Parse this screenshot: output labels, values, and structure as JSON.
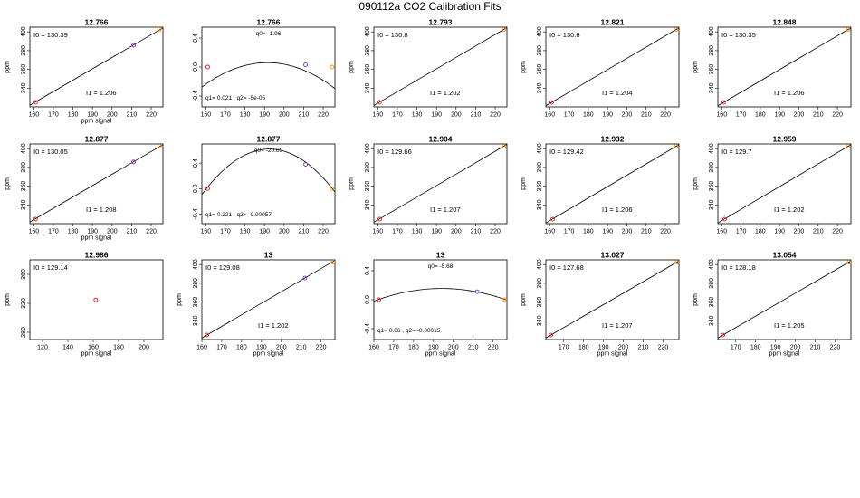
{
  "page": {
    "title": "090112a   CO2 Calibration Fits"
  },
  "chart_data": [
    {
      "type": "line",
      "kind": "linear",
      "title": "12.766",
      "xlabel": "ppm signal",
      "ylabel": "ppm",
      "xlim": [
        158,
        226
      ],
      "ylim": [
        320,
        405
      ],
      "xticks": [
        160,
        170,
        180,
        190,
        200,
        210,
        220
      ],
      "yticks": [
        340,
        360,
        380,
        400
      ],
      "points": [
        {
          "x": 160.9,
          "y": 324.9,
          "color": "#e41a1c"
        },
        {
          "x": 211,
          "y": 385.8,
          "color": "#7b2fbe"
        },
        {
          "x": 224.2,
          "y": 402.7,
          "color": "#ff8c00"
        }
      ],
      "line": [
        [
          158,
          321.8
        ],
        [
          226,
          404.2
        ]
      ],
      "annotations": {
        "top": "I0 =  130.39",
        "bottom": "I1 =  1.206"
      }
    },
    {
      "type": "line",
      "kind": "residual",
      "title": "12.766",
      "xlabel": "",
      "ylabel": "",
      "xlim": [
        158,
        226
      ],
      "ylim": [
        -0.55,
        0.55
      ],
      "xticks": [
        160,
        170,
        180,
        190,
        200,
        210,
        220
      ],
      "yticks": [
        -0.4,
        0.0,
        0.4
      ],
      "points": [
        {
          "x": 161,
          "y": 0.0,
          "color": "#e41a1c"
        },
        {
          "x": 211,
          "y": 0.03,
          "color": "#7b2fbe"
        },
        {
          "x": 224.5,
          "y": 0.0,
          "color": "#ff8c00"
        }
      ],
      "curve": {
        "a": -0.0003,
        "c": 191.5,
        "k": 0.06
      },
      "annotations": {
        "top": "q0= -1.96",
        "bottom": "q1= 0.021  , q2= -5e-05"
      }
    },
    {
      "type": "line",
      "kind": "linear",
      "title": "12.793",
      "xlabel": "",
      "ylabel": "ppm",
      "xlim": [
        158,
        226
      ],
      "ylim": [
        320,
        405
      ],
      "xticks": [
        160,
        170,
        180,
        190,
        200,
        210,
        220
      ],
      "yticks": [
        340,
        360,
        380,
        400
      ],
      "points": [
        {
          "x": 160.9,
          "y": 324.9,
          "color": "#e41a1c"
        },
        {
          "x": 224.5,
          "y": 402.5,
          "color": "#ff8c00"
        }
      ],
      "line": [
        [
          158,
          321.5
        ],
        [
          226,
          404.5
        ]
      ],
      "annotations": {
        "top": "I0 =  130.8",
        "bottom": "I1 =  1.202"
      }
    },
    {
      "type": "line",
      "kind": "linear",
      "title": "12.821",
      "xlabel": "",
      "ylabel": "ppm",
      "xlim": [
        158,
        227
      ],
      "ylim": [
        320,
        405
      ],
      "xticks": [
        160,
        170,
        180,
        190,
        200,
        210,
        220
      ],
      "yticks": [
        340,
        360,
        380,
        400
      ],
      "points": [
        {
          "x": 161,
          "y": 324.8,
          "color": "#e41a1c"
        },
        {
          "x": 225.5,
          "y": 402.5,
          "color": "#ff8c00"
        }
      ],
      "line": [
        [
          158,
          321.2
        ],
        [
          227,
          404.3
        ]
      ],
      "annotations": {
        "top": "I0 =  130.6",
        "bottom": "I1 =  1.204"
      }
    },
    {
      "type": "line",
      "kind": "linear",
      "title": "12.848",
      "xlabel": "",
      "ylabel": "ppm",
      "xlim": [
        158,
        227
      ],
      "ylim": [
        320,
        405
      ],
      "xticks": [
        160,
        170,
        180,
        190,
        200,
        210,
        220
      ],
      "yticks": [
        340,
        360,
        380,
        400
      ],
      "points": [
        {
          "x": 161,
          "y": 324.8,
          "color": "#e41a1c"
        },
        {
          "x": 225.5,
          "y": 402.5,
          "color": "#ff8c00"
        }
      ],
      "line": [
        [
          158,
          321.2
        ],
        [
          227,
          404.3
        ]
      ],
      "annotations": {
        "top": "I0 =  130.35",
        "bottom": "I1 =  1.206"
      }
    },
    {
      "type": "line",
      "kind": "linear",
      "title": "12.877",
      "xlabel": "ppm signal",
      "ylabel": "ppm",
      "xlim": [
        158,
        226
      ],
      "ylim": [
        320,
        405
      ],
      "xticks": [
        160,
        170,
        180,
        190,
        200,
        210,
        220
      ],
      "yticks": [
        340,
        360,
        380,
        400
      ],
      "points": [
        {
          "x": 160.9,
          "y": 324.9,
          "color": "#e41a1c"
        },
        {
          "x": 211,
          "y": 385.8,
          "color": "#7b2fbe"
        },
        {
          "x": 224.3,
          "y": 402.6,
          "color": "#ff8c00"
        }
      ],
      "line": [
        [
          158,
          321.8
        ],
        [
          226,
          404.2
        ]
      ],
      "annotations": {
        "top": "I0 =  130.05",
        "bottom": "I1 =  1.208"
      }
    },
    {
      "type": "line",
      "kind": "residual",
      "title": "12.877",
      "xlabel": "",
      "ylabel": "",
      "xlim": [
        158,
        226
      ],
      "ylim": [
        -0.55,
        0.7
      ],
      "xticks": [
        160,
        170,
        180,
        190,
        200,
        210,
        220
      ],
      "yticks": [
        -0.4,
        0.0,
        0.4
      ],
      "points": [
        {
          "x": 161,
          "y": 0.0,
          "color": "#e41a1c"
        },
        {
          "x": 211,
          "y": 0.38,
          "color": "#7b2fbe"
        },
        {
          "x": 224.5,
          "y": 0.0,
          "color": "#ff8c00"
        }
      ],
      "curve": {
        "a": -0.0006,
        "c": 192.5,
        "k": 0.62
      },
      "annotations": {
        "top": "q0= -20.69",
        "bottom": "q1= 0.221  , q2= -0.00057"
      }
    },
    {
      "type": "line",
      "kind": "linear",
      "title": "12.904",
      "xlabel": "",
      "ylabel": "ppm",
      "xlim": [
        158,
        226
      ],
      "ylim": [
        320,
        405
      ],
      "xticks": [
        160,
        170,
        180,
        190,
        200,
        210,
        220
      ],
      "yticks": [
        340,
        360,
        380,
        400
      ],
      "points": [
        {
          "x": 161,
          "y": 324.9,
          "color": "#e41a1c"
        },
        {
          "x": 224.5,
          "y": 402.5,
          "color": "#ff8c00"
        }
      ],
      "line": [
        [
          158,
          321.5
        ],
        [
          226,
          404.5
        ]
      ],
      "annotations": {
        "top": "I0 =  129.66",
        "bottom": "I1 =  1.207"
      }
    },
    {
      "type": "line",
      "kind": "linear",
      "title": "12.932",
      "xlabel": "",
      "ylabel": "ppm",
      "xlim": [
        158,
        227
      ],
      "ylim": [
        320,
        405
      ],
      "xticks": [
        160,
        170,
        180,
        190,
        200,
        210,
        220
      ],
      "yticks": [
        340,
        360,
        380,
        400
      ],
      "points": [
        {
          "x": 161.5,
          "y": 324.8,
          "color": "#e41a1c"
        },
        {
          "x": 225.5,
          "y": 402.5,
          "color": "#ff8c00"
        }
      ],
      "line": [
        [
          158,
          320.8
        ],
        [
          227,
          404.3
        ]
      ],
      "annotations": {
        "top": "I0 =  129.42",
        "bottom": "I1 =  1.206"
      }
    },
    {
      "type": "line",
      "kind": "linear",
      "title": "12.959",
      "xlabel": "",
      "ylabel": "ppm",
      "xlim": [
        158,
        227
      ],
      "ylim": [
        320,
        405
      ],
      "xticks": [
        160,
        170,
        180,
        190,
        200,
        210,
        220
      ],
      "yticks": [
        340,
        360,
        380,
        400
      ],
      "points": [
        {
          "x": 161.5,
          "y": 324.8,
          "color": "#e41a1c"
        },
        {
          "x": 225.5,
          "y": 402.5,
          "color": "#ff8c00"
        }
      ],
      "line": [
        [
          158,
          320.8
        ],
        [
          227,
          404.3
        ]
      ],
      "annotations": {
        "top": "I0 =  129.7",
        "bottom": "I1 =  1.202"
      }
    },
    {
      "type": "scatter",
      "kind": "single",
      "title": "12.986",
      "xlabel": "ppm signal",
      "ylabel": "ppm",
      "xlim": [
        110,
        215
      ],
      "ylim": [
        270,
        380
      ],
      "xticks": [
        120,
        140,
        160,
        180,
        200
      ],
      "yticks": [
        280,
        320,
        360
      ],
      "points": [
        {
          "x": 162,
          "y": 324.8,
          "color": "#e41a1c"
        }
      ],
      "annotations": {
        "top": "I0 =  129.14",
        "bottom": ""
      }
    },
    {
      "type": "line",
      "kind": "linear",
      "title": "13",
      "xlabel": "ppm signal",
      "ylabel": "ppm",
      "xlim": [
        160,
        227
      ],
      "ylim": [
        320,
        405
      ],
      "xticks": [
        160,
        170,
        180,
        190,
        200,
        210,
        220
      ],
      "yticks": [
        340,
        360,
        380,
        400
      ],
      "points": [
        {
          "x": 162.6,
          "y": 324.9,
          "color": "#e41a1c"
        },
        {
          "x": 211.9,
          "y": 385.6,
          "color": "#7b2fbe"
        },
        {
          "x": 226,
          "y": 402.6,
          "color": "#ff8c00"
        }
      ],
      "line": [
        [
          160,
          321.7
        ],
        [
          227,
          404.3
        ]
      ],
      "annotations": {
        "top": "I0 =  129.08",
        "bottom": "I1 =  1.202"
      }
    },
    {
      "type": "line",
      "kind": "residual",
      "title": "13",
      "xlabel": "ppm signal",
      "ylabel": "",
      "xlim": [
        160,
        227
      ],
      "ylim": [
        -0.55,
        0.55
      ],
      "xticks": [
        160,
        170,
        180,
        190,
        200,
        210,
        220
      ],
      "yticks": [
        -0.4,
        0.0,
        0.4
      ],
      "points": [
        {
          "x": 162.5,
          "y": 0.0,
          "color": "#e41a1c"
        },
        {
          "x": 212,
          "y": 0.11,
          "color": "#7b2fbe"
        },
        {
          "x": 226,
          "y": 0.0,
          "color": "#ff8c00"
        }
      ],
      "curve": {
        "a": -0.00015,
        "c": 194.2,
        "k": 0.155
      },
      "annotations": {
        "top": "q0= -5.68",
        "bottom": "q1= 0.06  , q2= -0.00015"
      }
    },
    {
      "type": "line",
      "kind": "linear",
      "title": "13.027",
      "xlabel": "ppm signal",
      "ylabel": "ppm",
      "xlim": [
        161,
        228
      ],
      "ylim": [
        320,
        405
      ],
      "xticks": [
        170,
        180,
        190,
        200,
        210,
        220
      ],
      "yticks": [
        340,
        360,
        380,
        400
      ],
      "points": [
        {
          "x": 163.5,
          "y": 324.8,
          "color": "#e41a1c"
        },
        {
          "x": 227,
          "y": 402.5,
          "color": "#ff8c00"
        }
      ],
      "line": [
        [
          161,
          321.7
        ],
        [
          228,
          403.8
        ]
      ],
      "annotations": {
        "top": "I0 =  127.68",
        "bottom": "I1 =  1.207"
      }
    },
    {
      "type": "line",
      "kind": "linear",
      "title": "13.054",
      "xlabel": "ppm signal",
      "ylabel": "ppm",
      "xlim": [
        161,
        228
      ],
      "ylim": [
        320,
        405
      ],
      "xticks": [
        170,
        180,
        190,
        200,
        210,
        220
      ],
      "yticks": [
        340,
        360,
        380,
        400
      ],
      "points": [
        {
          "x": 163.5,
          "y": 324.8,
          "color": "#e41a1c"
        },
        {
          "x": 227,
          "y": 402.5,
          "color": "#ff8c00"
        }
      ],
      "line": [
        [
          161,
          321.7
        ],
        [
          228,
          403.8
        ]
      ],
      "annotations": {
        "top": "I0 =  128.18",
        "bottom": "I1 =  1.205"
      }
    }
  ]
}
